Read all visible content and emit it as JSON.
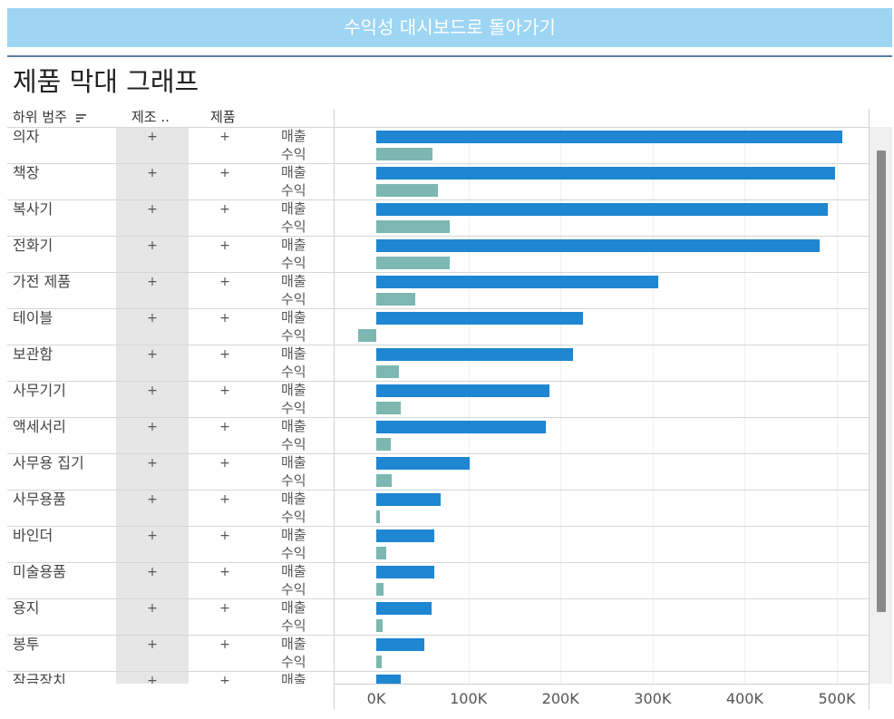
{
  "header": {
    "back_button_label": "수익성 대시보드로 돌아가기",
    "title": "제품 막대 그래프"
  },
  "columns": {
    "subcategory": "하위 범주",
    "manufacturer": "제조 ..",
    "product": "제품"
  },
  "expand_symbol": "+",
  "colors": {
    "sales": "#1f86d1",
    "profit": "#7cb8b1",
    "button": "#9dd5f3"
  },
  "chart_data": {
    "type": "bar",
    "orientation": "horizontal",
    "measures": [
      "매출",
      "수익"
    ],
    "categories": [
      "의자",
      "책장",
      "복사기",
      "전화기",
      "가전 제품",
      "테이블",
      "보관함",
      "사무기기",
      "액세서리",
      "사무용 집기",
      "사무용품",
      "바인더",
      "미술용품",
      "용지",
      "봉투",
      "잠금장치"
    ],
    "series": [
      {
        "name": "매출",
        "values": [
          506000,
          498000,
          490000,
          481000,
          306000,
          224000,
          214000,
          188000,
          184000,
          101000,
          70000,
          63000,
          63000,
          60000,
          52000,
          27000
        ]
      },
      {
        "name": "수익",
        "values": [
          61000,
          67000,
          80000,
          80000,
          42000,
          -20000,
          25000,
          27000,
          16000,
          17000,
          4000,
          11000,
          8000,
          7000,
          6000,
          5000
        ]
      }
    ],
    "x_ticks": [
      "0K",
      "100K",
      "200K",
      "300K",
      "400K",
      "500K"
    ],
    "xlim": [
      -20000,
      530000
    ]
  }
}
